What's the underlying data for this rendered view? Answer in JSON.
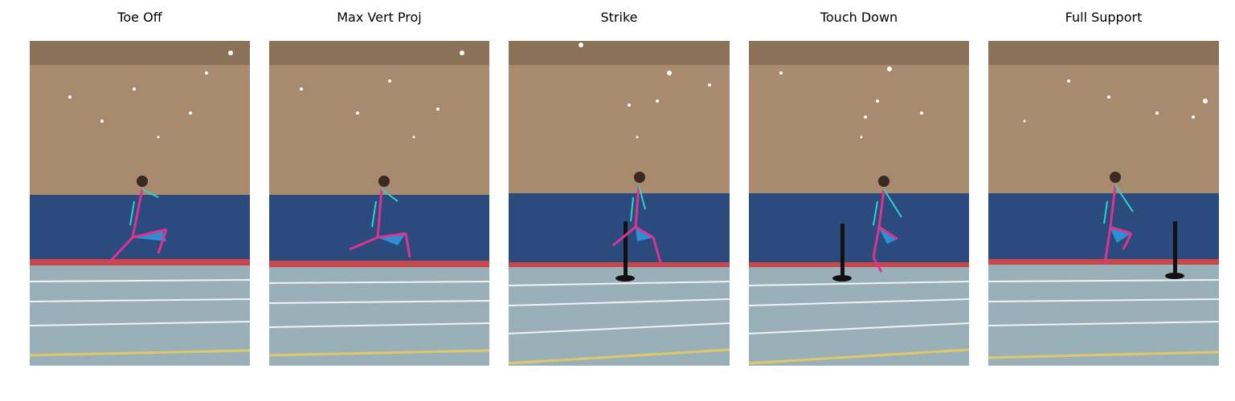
{
  "panels": [
    {
      "title": "Toe Off"
    },
    {
      "title": "Max Vert Proj"
    },
    {
      "title": "Strike"
    },
    {
      "title": "Touch Down"
    },
    {
      "title": "Full Support"
    }
  ],
  "colors": {
    "wall": "#a88b6e",
    "ceiling": "#8a7158",
    "padding": "#2b4a7e",
    "track": "#9ab0b9",
    "red_stripe": "#c9464a",
    "skeleton_pink": "#e0338f",
    "skeleton_cyan": "#2fd3c8",
    "triangle": "#2f8ed1"
  }
}
